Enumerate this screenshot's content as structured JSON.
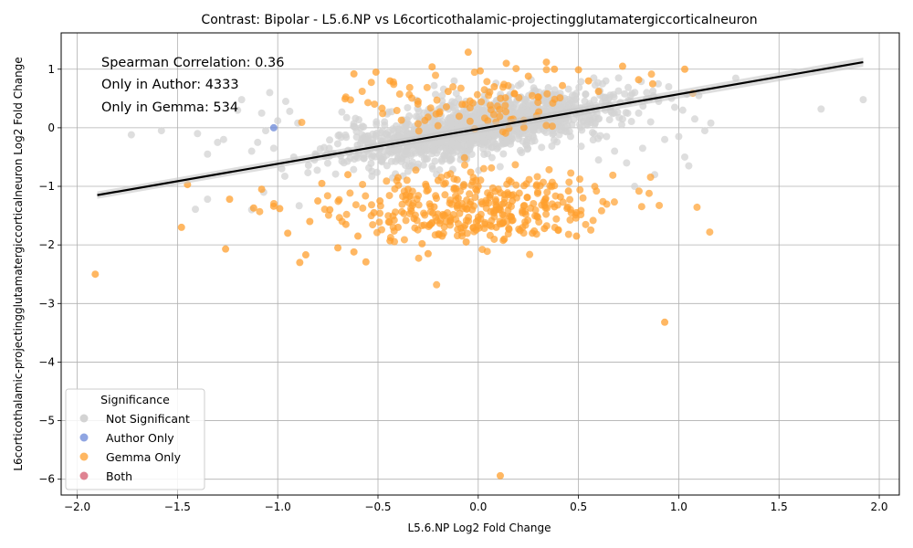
{
  "chart_data": {
    "type": "scatter",
    "title": "Contrast: Bipolar - L5.6.NP vs L6corticothalamic-projectingglutamatergiccorticalneuron",
    "xlabel": "L5.6.NP Log2 Fold Change",
    "ylabel": "L6corticothalamic-projectingglutamatergiccorticalneuron Log2 Fold Change",
    "xlim": [
      -2.08,
      2.1
    ],
    "ylim": [
      -6.27,
      1.62
    ],
    "xticks": [
      -2.0,
      -1.5,
      -1.0,
      -0.5,
      0.0,
      0.5,
      1.0,
      1.5,
      2.0
    ],
    "xtick_labels": [
      "−2.0",
      "−1.5",
      "−1.0",
      "−0.5",
      "0.0",
      "0.5",
      "1.0",
      "1.5",
      "2.0"
    ],
    "yticks": [
      -6,
      -5,
      -4,
      -3,
      -2,
      -1,
      0,
      1
    ],
    "ytick_labels": [
      "−6",
      "−5",
      "−4",
      "−3",
      "−2",
      "−1",
      "0",
      "1"
    ],
    "grid": true,
    "annotations": [
      "Spearman Correlation: 0.36",
      "Only in Author: 4333",
      "Only in Gemma: 534"
    ],
    "legend": {
      "title": "Significance",
      "position": "lower-left",
      "entries": [
        {
          "label": "Not Significant",
          "color": "#d3d3d3"
        },
        {
          "label": "Author Only",
          "color": "#6a87d8"
        },
        {
          "label": "Gemma Only",
          "color": "#ff9f2e"
        },
        {
          "label": "Both",
          "color": "#d45a6e"
        }
      ]
    },
    "regression_line": {
      "x": [
        -1.9,
        1.92
      ],
      "y": [
        -1.15,
        1.12
      ],
      "color": "#000000"
    },
    "series": [
      {
        "name": "Not Significant",
        "color": "#d3d3d3",
        "points": [
          [
            1.92,
            0.48
          ],
          [
            1.71,
            0.32
          ],
          [
            1.16,
            0.08
          ],
          [
            1.13,
            -0.05
          ],
          [
            1.1,
            0.55
          ],
          [
            1.08,
            0.15
          ],
          [
            1.05,
            -0.65
          ],
          [
            1.03,
            -0.5
          ],
          [
            1.02,
            0.3
          ],
          [
            1.0,
            -0.15
          ],
          [
            0.98,
            0.35
          ],
          [
            0.95,
            0.7
          ],
          [
            0.93,
            -0.2
          ],
          [
            0.9,
            0.45
          ],
          [
            0.88,
            -0.8
          ],
          [
            0.86,
            0.1
          ],
          [
            0.84,
            0.6
          ],
          [
            0.82,
            -0.35
          ],
          [
            0.8,
            0.25
          ],
          [
            0.78,
            -1.0
          ],
          [
            0.76,
            0.55
          ],
          [
            0.74,
            -0.6
          ],
          [
            0.72,
            0.15
          ],
          [
            0.7,
            0.85
          ],
          [
            0.68,
            -0.4
          ],
          [
            0.66,
            0.3
          ],
          [
            0.64,
            -0.15
          ],
          [
            0.62,
            0.75
          ],
          [
            0.6,
            -0.55
          ],
          [
            0.58,
            0.05
          ],
          [
            -1.73,
            -0.12
          ],
          [
            -1.58,
            -0.05
          ],
          [
            -1.4,
            -0.1
          ],
          [
            -1.35,
            -0.45
          ],
          [
            -1.3,
            -0.25
          ],
          [
            -1.27,
            -0.2
          ],
          [
            -1.2,
            0.3
          ],
          [
            -1.18,
            0.48
          ],
          [
            -1.13,
            -0.4
          ],
          [
            -1.1,
            -0.25
          ],
          [
            -1.08,
            0.25
          ],
          [
            -1.06,
            -0.05
          ],
          [
            -1.04,
            0.6
          ],
          [
            -1.02,
            -0.35
          ],
          [
            -1.0,
            0.12
          ],
          [
            -0.98,
            -0.7
          ],
          [
            -0.96,
            0.45
          ],
          [
            -0.94,
            0.28
          ],
          [
            -0.92,
            -0.5
          ],
          [
            -0.9,
            0.08
          ],
          [
            -1.13,
            -1.4
          ],
          [
            -1.35,
            -1.22
          ],
          [
            -1.07,
            -1.1
          ],
          [
            -0.22,
            0.72
          ],
          [
            -0.18,
            0.55
          ],
          [
            -0.12,
            0.8
          ],
          [
            0.05,
            0.62
          ],
          [
            0.2,
            0.72
          ],
          [
            0.35,
            0.58
          ],
          [
            0.45,
            0.66
          ]
        ]
      },
      {
        "name": "Author Only",
        "color": "#6a87d8",
        "points": [
          [
            -1.02,
            0.0
          ]
        ]
      },
      {
        "name": "Gemma Only",
        "color": "#ff9f2e",
        "points": [
          [
            -1.91,
            -2.5
          ],
          [
            -1.48,
            -1.7
          ],
          [
            -1.45,
            -0.97
          ],
          [
            -1.26,
            -2.07
          ],
          [
            -1.24,
            -1.22
          ],
          [
            -1.12,
            -1.37
          ],
          [
            -1.08,
            -1.05
          ],
          [
            -1.02,
            -1.34
          ],
          [
            -0.99,
            -1.38
          ],
          [
            -0.95,
            -1.8
          ],
          [
            -0.89,
            -2.3
          ],
          [
            -0.86,
            -2.17
          ],
          [
            -0.84,
            -1.6
          ],
          [
            -0.8,
            -1.25
          ],
          [
            -0.78,
            -0.95
          ],
          [
            -0.74,
            -1.4
          ],
          [
            -0.7,
            -2.05
          ],
          [
            -0.66,
            -1.65
          ],
          [
            -0.62,
            -2.12
          ],
          [
            -0.6,
            -1.85
          ],
          [
            -0.56,
            -2.29
          ],
          [
            -0.52,
            -1.45
          ],
          [
            -0.49,
            -1.25
          ],
          [
            -0.44,
            -1.93
          ],
          [
            -0.4,
            -1.7
          ],
          [
            -0.36,
            -1.15
          ],
          [
            -0.32,
            -1.55
          ],
          [
            -0.28,
            -1.98
          ],
          [
            -0.25,
            -2.15
          ],
          [
            -0.22,
            -1.35
          ],
          [
            -0.18,
            -1.85
          ],
          [
            -0.14,
            -1.6
          ],
          [
            -0.1,
            -1.2
          ],
          [
            -0.06,
            -1.95
          ],
          [
            -0.03,
            -1.4
          ],
          [
            0.02,
            -1.3
          ],
          [
            0.06,
            -1.15
          ],
          [
            0.09,
            -1.7
          ],
          [
            0.13,
            -1.9
          ],
          [
            0.17,
            -1.25
          ],
          [
            0.22,
            -1.45
          ],
          [
            0.27,
            -1.8
          ],
          [
            0.33,
            -1.72
          ],
          [
            0.38,
            -1.35
          ],
          [
            0.41,
            -1.18
          ],
          [
            0.45,
            -1.08
          ],
          [
            0.49,
            -1.45
          ],
          [
            0.49,
            -1.85
          ],
          [
            0.93,
            -3.32
          ],
          [
            0.11,
            -5.94
          ],
          [
            -0.62,
            0.92
          ],
          [
            -0.51,
            0.95
          ],
          [
            -0.44,
            0.8
          ],
          [
            -0.23,
            1.04
          ],
          [
            -0.05,
            1.29
          ],
          [
            0.01,
            0.97
          ],
          [
            0.14,
            1.1
          ],
          [
            0.34,
            1.12
          ],
          [
            0.38,
            1.0
          ],
          [
            0.5,
            0.99
          ],
          [
            0.72,
            1.05
          ],
          [
            0.8,
            0.82
          ],
          [
            0.87,
            0.75
          ],
          [
            1.03,
            1.0
          ],
          [
            1.07,
            0.59
          ],
          [
            0.55,
            0.8
          ],
          [
            0.25,
            0.88
          ],
          [
            0.08,
            0.7
          ],
          [
            -0.3,
            0.45
          ],
          [
            -0.15,
            0.62
          ],
          [
            0.6,
            0.62
          ],
          [
            0.3,
            0.52
          ],
          [
            -0.08,
            0.4
          ],
          [
            0.42,
            0.72
          ],
          [
            0.18,
            0.58
          ],
          [
            -0.4,
            -0.85
          ],
          [
            -0.2,
            -0.9
          ],
          [
            0.0,
            -1.0
          ],
          [
            -0.65,
            -0.8
          ],
          [
            -0.35,
            -1.05
          ]
        ]
      },
      {
        "name": "Both",
        "color": "#d45a6e",
        "points": []
      }
    ]
  }
}
